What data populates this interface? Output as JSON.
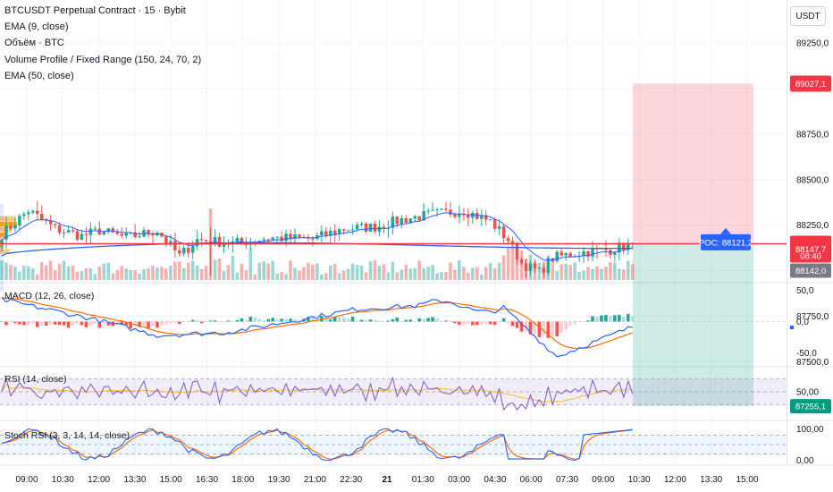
{
  "header": {
    "title": "BTCUSDT Perpetual Contract · 15 · Bybit",
    "ind_ema9": "EMA (9, close)",
    "ind_volume": "Объём · BTC",
    "ind_vp": "Volume Profile / Fixed Range (150, 24, 70, 2)",
    "ind_ema50": "EMA (50, close)",
    "currency": "USDT"
  },
  "price_axis": {
    "ticks": [
      "89250,0",
      "88750,0",
      "88500,0",
      "88250,0",
      "87750,0",
      "87500,0"
    ],
    "tick_values": [
      89250,
      88750,
      88500,
      88250,
      87750,
      87500
    ],
    "badges": {
      "target": "89027,1",
      "current": "88147,7",
      "countdown": "08:40",
      "last": "88142,0",
      "stop": "87255,1"
    },
    "poc_label": "POC: 88121,2"
  },
  "panes": {
    "macd": {
      "label": "MACD (12, 26, close)",
      "ticks": [
        "50,0",
        "0,0",
        "-50,0"
      ]
    },
    "rsi": {
      "label": "RSI (14, close)",
      "ticks": [
        "50,00"
      ]
    },
    "stoch": {
      "label": "Stoch RSI (3, 3, 14, 14, close)",
      "ticks": [
        "100,00",
        "0,00"
      ]
    }
  },
  "time_axis": [
    "09:00",
    "10:30",
    "12:00",
    "13:30",
    "15:00",
    "16:30",
    "18:00",
    "19:30",
    "21:00",
    "22:30",
    "21",
    "01:30",
    "03:00",
    "04:30",
    "06:00",
    "07:30",
    "09:00",
    "10:30",
    "12:00",
    "13:30",
    "15:00"
  ],
  "colors": {
    "up": "#26a69a",
    "down": "#ef5350",
    "ema9": "#2962ff",
    "ema50": "#2962ff",
    "signal": "#ff6d00",
    "rsi": "#7e57c2",
    "poc": "#2962ff"
  },
  "chart_data": {
    "type": "candlestick",
    "symbol": "BTCUSDT Perpetual Contract",
    "interval": "15",
    "exchange": "Bybit",
    "candle_anchor_closes": [
      [
        0,
        88200
      ],
      [
        6,
        88330
      ],
      [
        12,
        88230
      ],
      [
        18,
        88190
      ],
      [
        22,
        88220
      ],
      [
        28,
        88180
      ],
      [
        35,
        88220
      ],
      [
        40,
        88080
      ],
      [
        44,
        88170
      ],
      [
        52,
        88150
      ],
      [
        60,
        88180
      ],
      [
        70,
        88175
      ],
      [
        77,
        88230
      ],
      [
        84,
        88240
      ],
      [
        90,
        88280
      ],
      [
        97,
        88310
      ],
      [
        104,
        88330
      ],
      [
        110,
        88270
      ],
      [
        114,
        88170
      ],
      [
        117,
        88040
      ],
      [
        121,
        87990
      ],
      [
        124,
        88070
      ],
      [
        130,
        88100
      ],
      [
        137,
        88115
      ],
      [
        142,
        88148
      ]
    ],
    "ema_slow_range": [
      88080,
      88148
    ],
    "position": {
      "entry": 88147.7,
      "target": 89027.1,
      "stop": 87255.1
    },
    "volume_profile_poc": 88121.2,
    "ylim": [
      87300,
      89400
    ],
    "macd": {
      "ylim": [
        -70,
        60
      ],
      "ticks": [
        50,
        0,
        -50
      ]
    },
    "rsi": {
      "ylim": [
        15,
        85
      ],
      "ticks": [
        50
      ]
    },
    "stoch_rsi": {
      "ylim": [
        -10,
        110
      ],
      "ticks": [
        100,
        0
      ]
    }
  }
}
